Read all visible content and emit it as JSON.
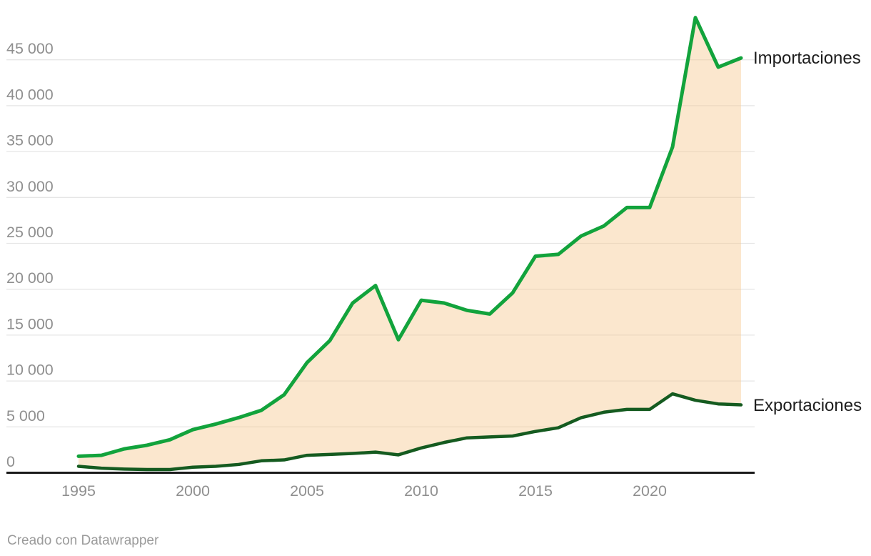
{
  "footer": {
    "credit": "Creado con Datawrapper"
  },
  "colors": {
    "imports_line": "#12A33C",
    "exports_line": "#155B20",
    "area_fill_rgba": "rgba(247,201,147,0.45)",
    "area_fill_effective": "#FBE7CE",
    "gridline": "#E6E6E6",
    "axis": "#1A1A1A",
    "tick_text": "#8F8F8F",
    "series_label_text": "#1D1D1D",
    "footer_text": "#9B9B9B"
  },
  "chart_data": {
    "type": "area",
    "title": "",
    "xlabel": "",
    "ylabel": "",
    "grid": "horizontal",
    "legend_position": "direct-labels-right",
    "xlim": [
      1995,
      2024
    ],
    "ylim": [
      0,
      50000
    ],
    "x": [
      1995,
      1996,
      1997,
      1998,
      1999,
      2000,
      2001,
      2002,
      2003,
      2004,
      2005,
      2006,
      2007,
      2008,
      2009,
      2010,
      2011,
      2012,
      2013,
      2014,
      2015,
      2016,
      2017,
      2018,
      2019,
      2020,
      2021,
      2022,
      2023,
      2024
    ],
    "series": [
      {
        "name": "Importaciones",
        "color": "#12A33C",
        "values": [
          1800,
          1900,
          2600,
          3000,
          3600,
          4700,
          5300,
          6000,
          6800,
          8500,
          12000,
          14400,
          18500,
          20400,
          14500,
          18800,
          18500,
          17700,
          17300,
          19600,
          23600,
          23800,
          25800,
          26900,
          28900,
          28900,
          35500,
          49600,
          44200,
          45200
        ]
      },
      {
        "name": "Exportaciones",
        "color": "#155B20",
        "values": [
          700,
          500,
          400,
          350,
          350,
          600,
          700,
          900,
          1300,
          1400,
          1900,
          2000,
          2100,
          2250,
          1950,
          2700,
          3300,
          3800,
          3900,
          4000,
          4500,
          4900,
          6000,
          6600,
          6900,
          6900,
          8600,
          7900,
          7500,
          7400
        ]
      }
    ],
    "fill_between_series": true,
    "x_ticks": [
      {
        "value": 1995,
        "label": "1995"
      },
      {
        "value": 2000,
        "label": "2000"
      },
      {
        "value": 2005,
        "label": "2005"
      },
      {
        "value": 2010,
        "label": "2010"
      },
      {
        "value": 2015,
        "label": "2015"
      },
      {
        "value": 2020,
        "label": "2020"
      }
    ],
    "y_ticks": [
      {
        "value": 0,
        "label": "0"
      },
      {
        "value": 5000,
        "label": "5 000"
      },
      {
        "value": 10000,
        "label": "10 000"
      },
      {
        "value": 15000,
        "label": "15 000"
      },
      {
        "value": 20000,
        "label": "20 000"
      },
      {
        "value": 25000,
        "label": "25 000"
      },
      {
        "value": 30000,
        "label": "30 000"
      },
      {
        "value": 35000,
        "label": "35 000"
      },
      {
        "value": 40000,
        "label": "40 000"
      },
      {
        "value": 45000,
        "label": "45 000"
      }
    ]
  }
}
